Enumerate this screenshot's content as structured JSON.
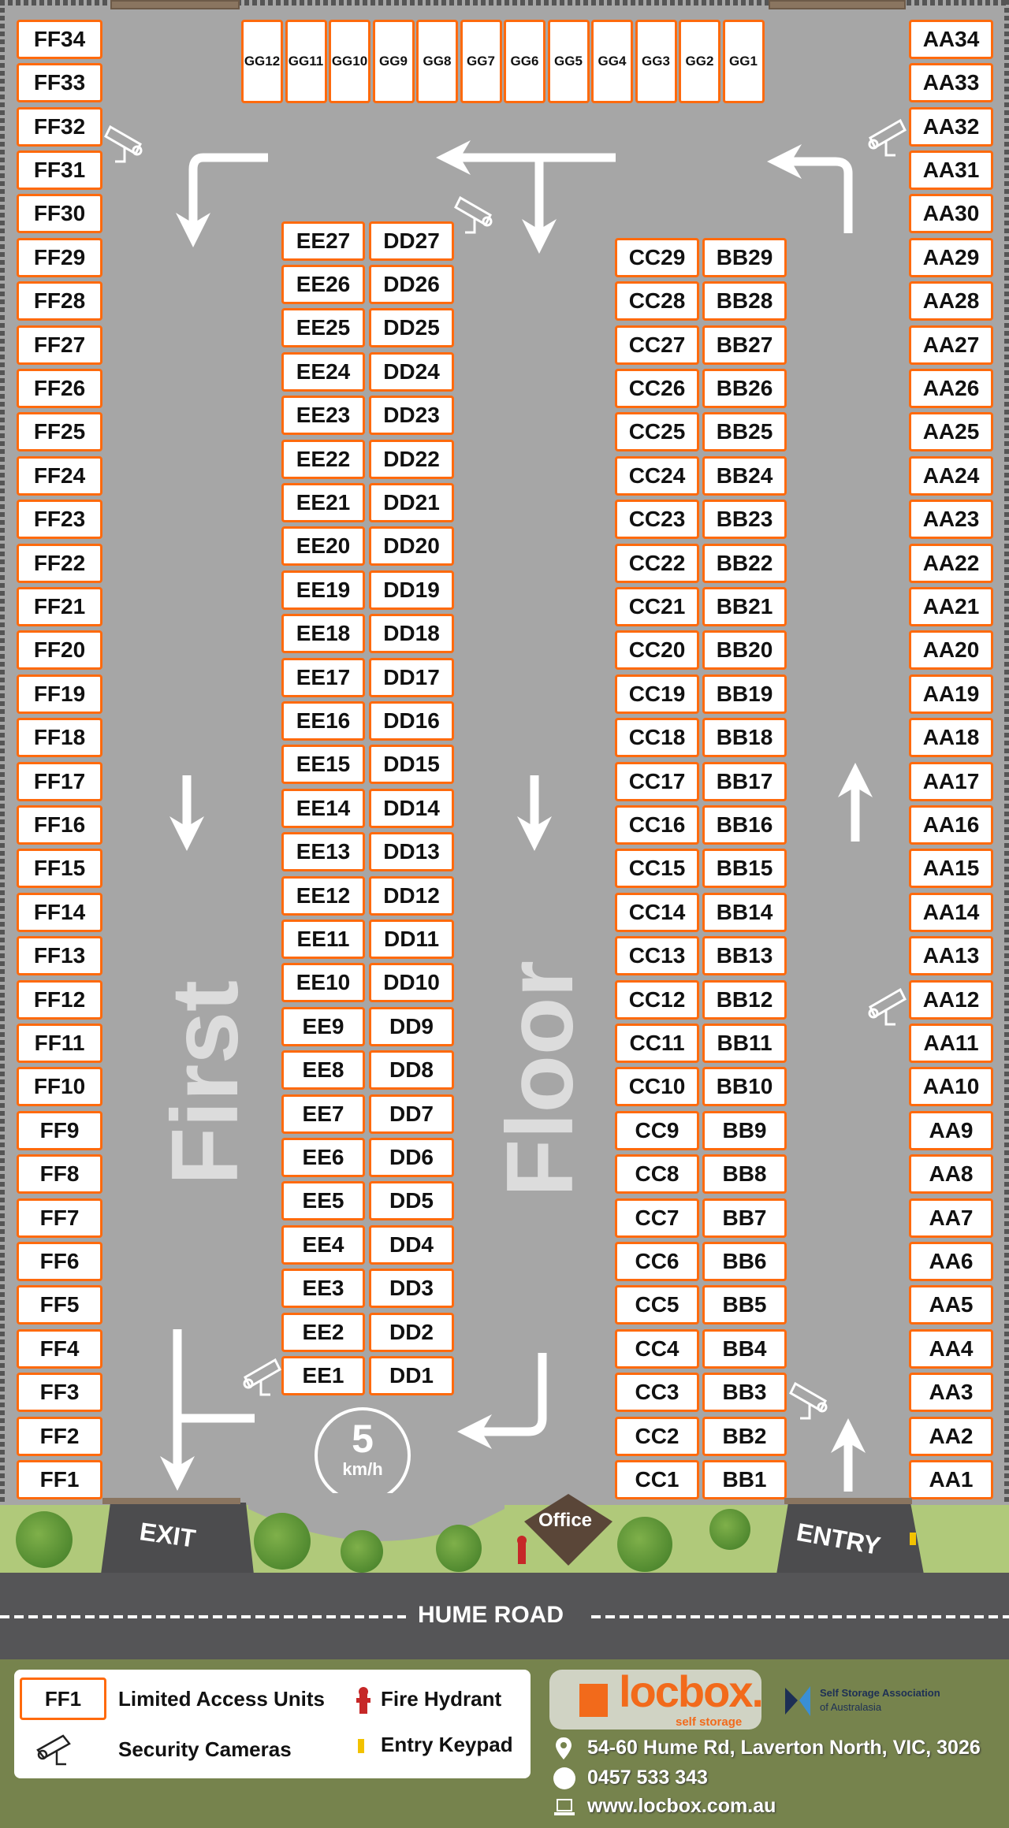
{
  "floor_label": [
    "First",
    "Floor"
  ],
  "speed_limit": {
    "value": "5",
    "unit": "km/h"
  },
  "units": {
    "ff": [
      "FF1",
      "FF2",
      "FF3",
      "FF4",
      "FF5",
      "FF6",
      "FF7",
      "FF8",
      "FF9",
      "FF10",
      "FF11",
      "FF12",
      "FF13",
      "FF14",
      "FF15",
      "FF16",
      "FF17",
      "FF18",
      "FF19",
      "FF20",
      "FF21",
      "FF22",
      "FF23",
      "FF24",
      "FF25",
      "FF26",
      "FF27",
      "FF28",
      "FF29",
      "FF30",
      "FF31",
      "FF32",
      "FF33",
      "FF34"
    ],
    "aa": [
      "AA1",
      "AA2",
      "AA3",
      "AA4",
      "AA5",
      "AA6",
      "AA7",
      "AA8",
      "AA9",
      "AA10",
      "AA11",
      "AA12",
      "AA13",
      "AA14",
      "AA15",
      "AA16",
      "AA17",
      "AA18",
      "AA19",
      "AA20",
      "AA21",
      "AA22",
      "AA23",
      "AA24",
      "AA25",
      "AA26",
      "AA27",
      "AA28",
      "AA29",
      "AA30",
      "AA31",
      "AA32",
      "AA33",
      "AA34"
    ],
    "ee": [
      "EE1",
      "EE2",
      "EE3",
      "EE4",
      "EE5",
      "EE6",
      "EE7",
      "EE8",
      "EE9",
      "EE10",
      "EE11",
      "EE12",
      "EE13",
      "EE14",
      "EE15",
      "EE16",
      "EE17",
      "EE18",
      "EE19",
      "EE20",
      "EE21",
      "EE22",
      "EE23",
      "EE24",
      "EE25",
      "EE26",
      "EE27"
    ],
    "dd": [
      "DD1",
      "DD2",
      "DD3",
      "DD4",
      "DD5",
      "DD6",
      "DD7",
      "DD8",
      "DD9",
      "DD10",
      "DD11",
      "DD12",
      "DD13",
      "DD14",
      "DD15",
      "DD16",
      "DD17",
      "DD18",
      "DD19",
      "DD20",
      "DD21",
      "DD22",
      "DD23",
      "DD24",
      "DD25",
      "DD26",
      "DD27"
    ],
    "cc": [
      "CC1",
      "CC2",
      "CC3",
      "CC4",
      "CC5",
      "CC6",
      "CC7",
      "CC8",
      "CC9",
      "CC10",
      "CC11",
      "CC12",
      "CC13",
      "CC14",
      "CC15",
      "CC16",
      "CC17",
      "CC18",
      "CC19",
      "CC20",
      "CC21",
      "CC22",
      "CC23",
      "CC24",
      "CC25",
      "CC26",
      "CC27",
      "CC28",
      "CC29"
    ],
    "bb": [
      "BB1",
      "BB2",
      "BB3",
      "BB4",
      "BB5",
      "BB6",
      "BB7",
      "BB8",
      "BB9",
      "BB10",
      "BB11",
      "BB12",
      "BB13",
      "BB14",
      "BB15",
      "BB16",
      "BB17",
      "BB18",
      "BB19",
      "BB20",
      "BB21",
      "BB22",
      "BB23",
      "BB24",
      "BB25",
      "BB26",
      "BB27",
      "BB28",
      "BB29"
    ],
    "gg": [
      "GG12",
      "GG11",
      "GG10",
      "GG9",
      "GG8",
      "GG7",
      "GG6",
      "GG5",
      "GG4",
      "GG3",
      "GG2",
      "GG1"
    ]
  },
  "site": {
    "exit": "EXIT",
    "entry": "ENTRY",
    "office": "Office",
    "road": "HUME ROAD"
  },
  "legend": {
    "sample_unit": "FF1",
    "limited_access": "Limited Access Units",
    "fire_hydrant": "Fire Hydrant",
    "security_cameras": "Security Cameras",
    "entry_keypad": "Entry Keypad"
  },
  "brand": {
    "name": "locbox.",
    "tagline": "self storage",
    "association_line1": "Self Storage Association",
    "association_line2": "of Australasia"
  },
  "contact": {
    "address": "54-60 Hume Rd, Laverton North, VIC, 3026",
    "phone": "0457 533 343",
    "website": "www.locbox.com.au"
  },
  "colors": {
    "unit_border": "#ff6a0d",
    "lot": "#a6a6a6",
    "grass": "#b0c97a",
    "road": "#555557",
    "footer": "#76834d",
    "office": "#5a4638",
    "keypad": "#f2c200",
    "hydrant": "#c62828"
  },
  "icons": {
    "camera": "security-camera-icon",
    "hydrant": "fire-hydrant-icon",
    "keypad": "keypad-icon",
    "location": "map-pin-icon",
    "phone": "phone-icon",
    "web": "laptop-icon"
  }
}
